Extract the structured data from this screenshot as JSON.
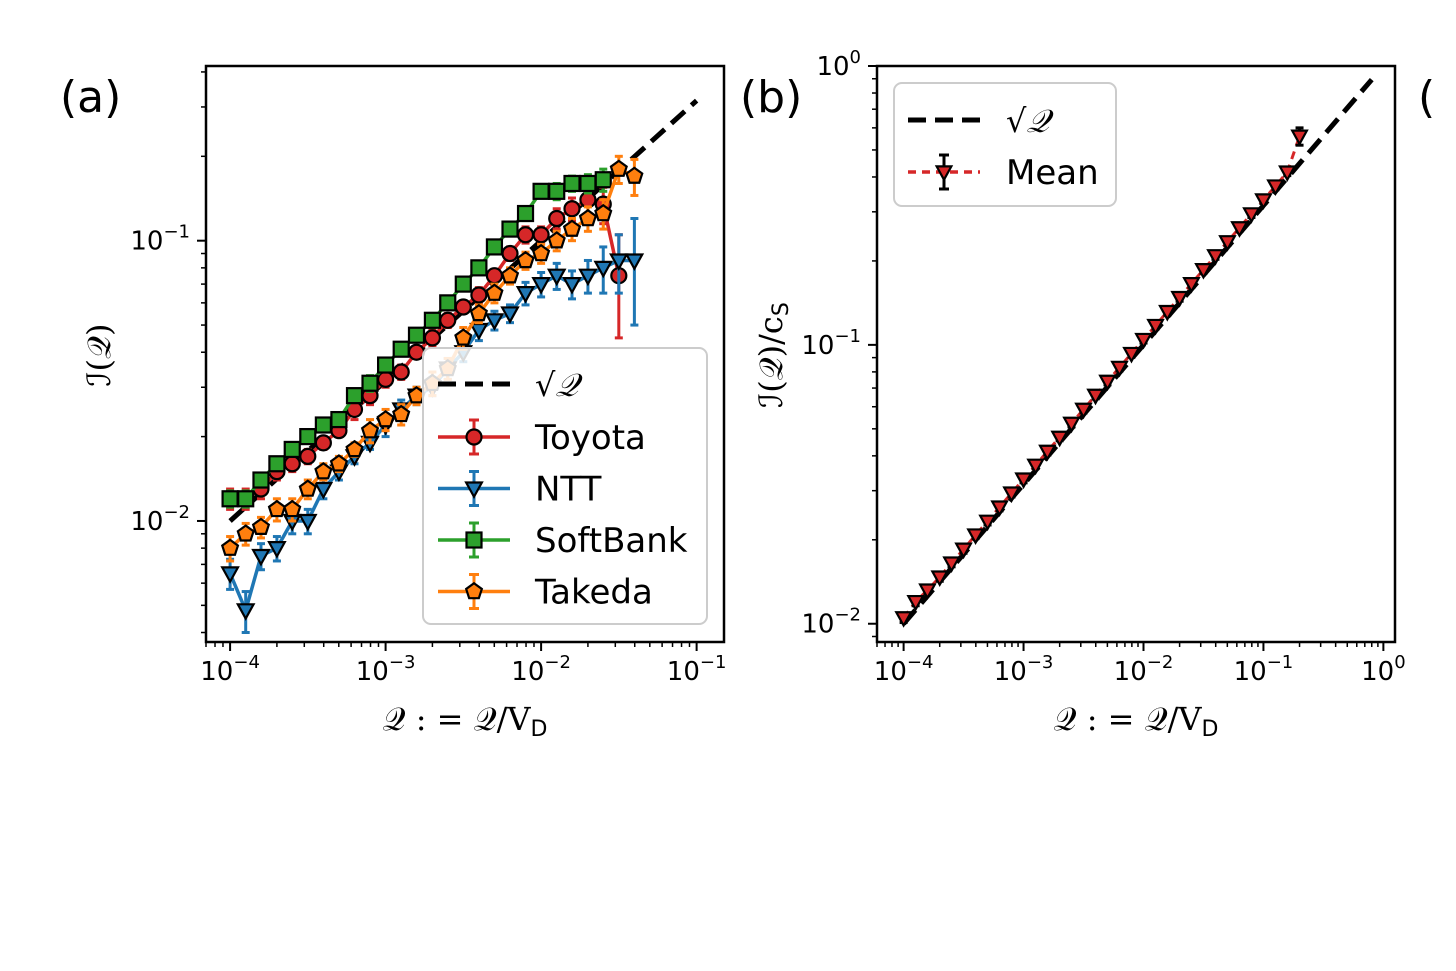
{
  "chart_data": [
    {
      "panel": "(a)",
      "type": "line",
      "log_x": true,
      "log_y": true,
      "xlim": [
        7e-05,
        0.15
      ],
      "ylim": [
        0.0037,
        0.42
      ],
      "xlabel": "𝒬 : = 𝒬/V",
      "xlabel_sub": "D",
      "ylabel": "ℐ(𝒬)",
      "x_ticks": [
        {
          "value": 0.0001,
          "base": "10",
          "exp": "−4"
        },
        {
          "value": 0.001,
          "base": "10",
          "exp": "−3"
        },
        {
          "value": 0.01,
          "base": "10",
          "exp": "−2"
        },
        {
          "value": 0.1,
          "base": "10",
          "exp": "−1"
        }
      ],
      "y_ticks": [
        {
          "value": 0.01,
          "base": "10",
          "exp": "−2"
        },
        {
          "value": 0.1,
          "base": "10",
          "exp": "−1"
        }
      ],
      "legend_position": "lower-right",
      "reference": {
        "name": "√𝒬",
        "x": [
          0.0001,
          0.1
        ],
        "y": [
          0.01,
          0.316
        ]
      },
      "series": [
        {
          "name": "Toyota",
          "color": "#d62728",
          "marker": "circle",
          "x": [
            0.0001,
            0.000126,
            0.000158,
            0.0002,
            0.000251,
            0.000316,
            0.000398,
            0.000501,
            0.000631,
            0.000794,
            0.001,
            0.00126,
            0.00158,
            0.002,
            0.00251,
            0.00316,
            0.00398,
            0.00501,
            0.00631,
            0.00794,
            0.01,
            0.0126,
            0.0158,
            0.02,
            0.0251,
            0.0316
          ],
          "y": [
            0.012,
            0.012,
            0.013,
            0.015,
            0.016,
            0.017,
            0.019,
            0.021,
            0.025,
            0.028,
            0.032,
            0.034,
            0.04,
            0.045,
            0.052,
            0.058,
            0.064,
            0.075,
            0.09,
            0.105,
            0.105,
            0.12,
            0.13,
            0.14,
            0.135,
            0.075
          ],
          "err": [
            0.001,
            0.001,
            0.001,
            0.001,
            0.001,
            0.001,
            0.001,
            0.001,
            0.002,
            0.002,
            0.002,
            0.002,
            0.002,
            0.003,
            0.003,
            0.003,
            0.004,
            0.004,
            0.005,
            0.007,
            0.007,
            0.01,
            0.012,
            0.02,
            0.02,
            0.03
          ]
        },
        {
          "name": "NTT",
          "color": "#1f77b4",
          "marker": "triangle-down",
          "x": [
            0.0001,
            0.000126,
            0.000158,
            0.0002,
            0.000251,
            0.000316,
            0.000398,
            0.000501,
            0.000631,
            0.000794,
            0.001,
            0.00126,
            0.00158,
            0.002,
            0.00251,
            0.00316,
            0.00398,
            0.00501,
            0.00631,
            0.00794,
            0.01,
            0.0126,
            0.0158,
            0.02,
            0.0251,
            0.0316,
            0.0398
          ],
          "y": [
            0.0065,
            0.0048,
            0.0075,
            0.008,
            0.01,
            0.01,
            0.013,
            0.015,
            0.017,
            0.019,
            0.022,
            0.025,
            0.028,
            0.03,
            0.035,
            0.04,
            0.048,
            0.052,
            0.055,
            0.065,
            0.07,
            0.075,
            0.07,
            0.075,
            0.08,
            0.085,
            0.085
          ],
          "err": [
            0.0008,
            0.0008,
            0.0008,
            0.0008,
            0.001,
            0.001,
            0.001,
            0.001,
            0.001,
            0.001,
            0.002,
            0.002,
            0.002,
            0.002,
            0.003,
            0.003,
            0.004,
            0.004,
            0.004,
            0.006,
            0.007,
            0.008,
            0.008,
            0.01,
            0.015,
            0.02,
            0.035
          ]
        },
        {
          "name": "SoftBank",
          "color": "#2ca02c",
          "marker": "square",
          "x": [
            0.0001,
            0.000126,
            0.000158,
            0.0002,
            0.000251,
            0.000316,
            0.000398,
            0.000501,
            0.000631,
            0.000794,
            0.001,
            0.00126,
            0.00158,
            0.002,
            0.00251,
            0.00316,
            0.00398,
            0.00501,
            0.00631,
            0.00794,
            0.01,
            0.0126,
            0.0158,
            0.02,
            0.0251
          ],
          "y": [
            0.012,
            0.012,
            0.014,
            0.016,
            0.018,
            0.02,
            0.022,
            0.023,
            0.028,
            0.031,
            0.036,
            0.041,
            0.046,
            0.052,
            0.06,
            0.07,
            0.08,
            0.095,
            0.11,
            0.125,
            0.15,
            0.15,
            0.16,
            0.16,
            0.165
          ],
          "err": [
            0.0008,
            0.0008,
            0.0008,
            0.0008,
            0.001,
            0.001,
            0.001,
            0.001,
            0.001,
            0.002,
            0.002,
            0.002,
            0.002,
            0.003,
            0.003,
            0.003,
            0.004,
            0.005,
            0.006,
            0.007,
            0.008,
            0.01,
            0.01,
            0.012,
            0.015
          ]
        },
        {
          "name": "Takeda",
          "color": "#ff7f0e",
          "marker": "pentagon",
          "x": [
            0.0001,
            0.000126,
            0.000158,
            0.0002,
            0.000251,
            0.000316,
            0.000398,
            0.000501,
            0.000631,
            0.000794,
            0.001,
            0.00126,
            0.00158,
            0.002,
            0.00251,
            0.00316,
            0.00398,
            0.00501,
            0.00631,
            0.00794,
            0.01,
            0.0126,
            0.0158,
            0.02,
            0.0251,
            0.0316,
            0.0398
          ],
          "y": [
            0.008,
            0.009,
            0.0095,
            0.011,
            0.011,
            0.013,
            0.015,
            0.016,
            0.018,
            0.021,
            0.023,
            0.024,
            0.028,
            0.031,
            0.035,
            0.045,
            0.055,
            0.065,
            0.075,
            0.085,
            0.09,
            0.1,
            0.11,
            0.12,
            0.125,
            0.18,
            0.17
          ],
          "err": [
            0.0008,
            0.0008,
            0.0008,
            0.001,
            0.001,
            0.001,
            0.001,
            0.001,
            0.001,
            0.002,
            0.002,
            0.002,
            0.002,
            0.003,
            0.003,
            0.004,
            0.004,
            0.005,
            0.005,
            0.006,
            0.007,
            0.008,
            0.01,
            0.012,
            0.015,
            0.02,
            0.025
          ]
        }
      ]
    },
    {
      "panel": "(b)",
      "type": "line",
      "log_x": true,
      "log_y": true,
      "xlim": [
        6e-05,
        1.25
      ],
      "ylim": [
        0.0086,
        1.0
      ],
      "xlabel": "𝒬 : = 𝒬/V",
      "xlabel_sub": "D",
      "ylabel": "ℐ(𝒬)/c",
      "ylabel_sub": "S",
      "x_ticks": [
        {
          "value": 0.0001,
          "base": "10",
          "exp": "−4"
        },
        {
          "value": 0.001,
          "base": "10",
          "exp": "−3"
        },
        {
          "value": 0.01,
          "base": "10",
          "exp": "−2"
        },
        {
          "value": 0.1,
          "base": "10",
          "exp": "−1"
        },
        {
          "value": 1,
          "base": "10",
          "exp": "0"
        }
      ],
      "y_ticks": [
        {
          "value": 0.01,
          "base": "10",
          "exp": "−2"
        },
        {
          "value": 0.1,
          "base": "10",
          "exp": "−1"
        },
        {
          "value": 1,
          "base": "10",
          "exp": "0"
        }
      ],
      "legend_position": "upper-left",
      "reference": {
        "name": "√𝒬",
        "x": [
          0.0001,
          0.8
        ],
        "y": [
          0.01,
          0.894
        ]
      },
      "series": [
        {
          "name": "Mean",
          "color": "#d62728",
          "marker": "triangle-down",
          "x": [
            0.0001,
            0.000126,
            0.000158,
            0.0002,
            0.000251,
            0.000316,
            0.000398,
            0.000501,
            0.000631,
            0.000794,
            0.001,
            0.00126,
            0.00158,
            0.002,
            0.00251,
            0.00316,
            0.00398,
            0.00501,
            0.00631,
            0.00794,
            0.01,
            0.0126,
            0.0158,
            0.02,
            0.0251,
            0.0316,
            0.0398,
            0.0501,
            0.0631,
            0.0794,
            0.1,
            0.126,
            0.158,
            0.2
          ],
          "y": [
            0.0105,
            0.012,
            0.0132,
            0.0147,
            0.0165,
            0.0185,
            0.0208,
            0.0233,
            0.0262,
            0.0294,
            0.033,
            0.037,
            0.0415,
            0.0466,
            0.0523,
            0.0587,
            0.0659,
            0.074,
            0.083,
            0.0931,
            0.1045,
            0.1173,
            0.1316,
            0.1477,
            0.1657,
            0.186,
            0.2087,
            0.2342,
            0.2628,
            0.2948,
            0.3308,
            0.3712,
            0.4165,
            0.56
          ],
          "err": [
            0.0004,
            0.0004,
            0.0004,
            0.0005,
            0.0005,
            0.0006,
            0.0006,
            0.0007,
            0.0008,
            0.0009,
            0.001,
            0.001,
            0.0012,
            0.0013,
            0.0015,
            0.0017,
            0.0019,
            0.0021,
            0.0024,
            0.0027,
            0.003,
            0.0034,
            0.0038,
            0.0043,
            0.0048,
            0.0054,
            0.006,
            0.0068,
            0.0076,
            0.0085,
            0.0096,
            0.011,
            0.012,
            0.04
          ]
        }
      ]
    }
  ],
  "panel_c_label_fragment": "("
}
